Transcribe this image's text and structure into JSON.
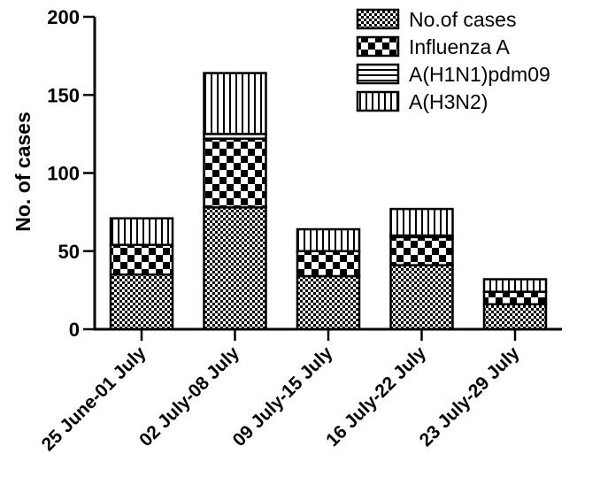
{
  "chart_data": {
    "type": "bar",
    "stacked": true,
    "categories": [
      "25 June-01 July",
      "02 July-08 July",
      "09 July-15 July",
      "16 July-22 July",
      "23 July-29 July"
    ],
    "series": [
      {
        "name": "No.of cases",
        "pattern": "fine-check",
        "values": [
          35,
          78,
          34,
          41,
          16
        ]
      },
      {
        "name": "Influenza A",
        "pattern": "coarse-check",
        "values": [
          19,
          44,
          16,
          18,
          8
        ]
      },
      {
        "name": "A(H1N1)pdm09",
        "pattern": "horizontal-lines",
        "values": [
          0,
          3,
          0,
          1,
          0
        ]
      },
      {
        "name": "A(H3N2)",
        "pattern": "vertical-lines",
        "values": [
          17,
          39,
          14,
          17,
          8
        ]
      }
    ],
    "ylabel": "No. of cases",
    "xlabel": "",
    "ylim": [
      0,
      200
    ],
    "yticks": [
      0,
      50,
      100,
      150,
      200
    ],
    "legend_position": "top-right",
    "grid": false,
    "colors": {
      "ink": "#000000",
      "background": "#ffffff"
    }
  }
}
